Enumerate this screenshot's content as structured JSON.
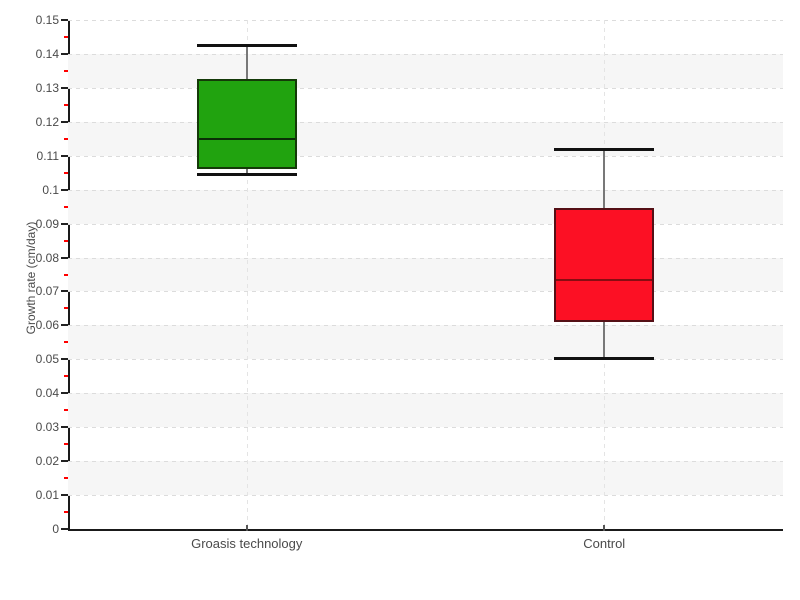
{
  "chart_data": {
    "type": "boxplot",
    "title": "",
    "xlabel": "",
    "ylabel": "Growth rate (cm/day)",
    "ylim": [
      0,
      0.15
    ],
    "ytick_step": 0.01,
    "yminor_step": 0.005,
    "ytick_labels": [
      "0.15",
      "0.14",
      "0.13",
      "0.12",
      "0.11",
      "0.1",
      "0.09",
      "0.08",
      "0.07",
      "0.06",
      "0.05",
      "0.04",
      "0.03",
      "0.02",
      "0.01",
      "0"
    ],
    "grid": {
      "horizontal": "dashed",
      "vertical": "dashed-at-categories",
      "alternating_bands": true,
      "legend": "none"
    },
    "categories": [
      "Groasis technology",
      "Control"
    ],
    "series": [
      {
        "name": "Groasis technology",
        "min": 0.1045,
        "q1": 0.106,
        "median": 0.115,
        "q3": 0.1325,
        "max": 0.1425,
        "fill": "#21a30f",
        "border": "#143a08",
        "median_color": "#0a2f06"
      },
      {
        "name": "Control",
        "min": 0.0505,
        "q1": 0.061,
        "median": 0.0735,
        "q3": 0.0945,
        "max": 0.112,
        "fill": "#fc1024",
        "border": "#551016",
        "median_color": "#870d12"
      }
    ],
    "colors": {
      "band": "#f6f6f6",
      "gridline": "#dcdcdc",
      "vertical_gridline": "#e4e4e4",
      "axis": "#1a1a1a",
      "major_tick": "#222222",
      "minor_tick": "#ff0000",
      "whisker_stem": "#787878",
      "whisker_cap": "#111111",
      "text": "#4a4a4a",
      "background": "#ffffff"
    }
  }
}
